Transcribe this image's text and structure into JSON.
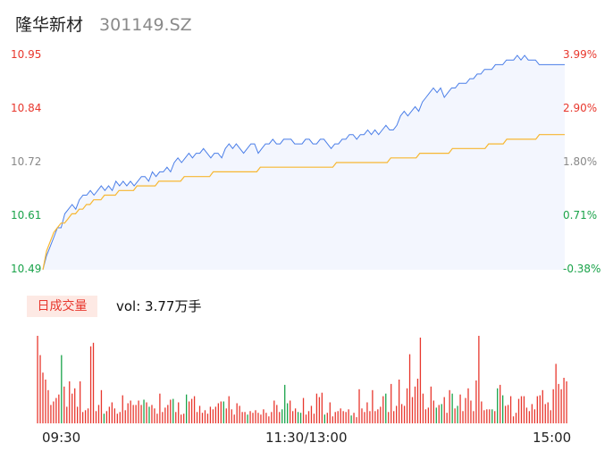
{
  "header": {
    "name": "隆华新材",
    "code": "301149.SZ"
  },
  "volume_label": "日成交量",
  "volume_text": "vol: 3.77万手",
  "colors": {
    "price_line": "#4a7ee8",
    "avg_line": "#f7b731",
    "fill": "#f3f6fe",
    "up": "#e8372d",
    "down": "#1aa34a",
    "neutral": "#888888"
  },
  "chart_data": [
    {
      "type": "line",
      "y_left_ticks": [
        "10.95",
        "10.84",
        "10.72",
        "10.61",
        "10.49"
      ],
      "y_right_ticks": [
        "3.99%",
        "2.90%",
        "1.80%",
        "0.71%",
        "-0.38%"
      ],
      "x_tick_labels": [
        "09:30",
        "11:30/13:00",
        "15:00"
      ],
      "ylim": [
        10.49,
        10.95
      ],
      "series": [
        {
          "values": [
            10.49,
            10.52,
            10.54,
            10.56,
            10.58,
            10.58,
            10.61,
            10.62,
            10.63,
            10.62,
            10.64,
            10.65,
            10.65,
            10.66,
            10.65,
            10.66,
            10.67,
            10.66,
            10.67,
            10.66,
            10.68,
            10.67,
            10.68,
            10.67,
            10.68,
            10.67,
            10.68,
            10.69,
            10.69,
            10.68,
            10.7,
            10.69,
            10.7,
            10.7,
            10.71,
            10.7,
            10.72,
            10.73,
            10.72,
            10.73,
            10.74,
            10.73,
            10.74,
            10.74,
            10.75,
            10.74,
            10.73,
            10.74,
            10.74,
            10.73,
            10.75,
            10.76,
            10.75,
            10.76,
            10.75,
            10.74,
            10.75,
            10.76,
            10.76,
            10.74,
            10.75,
            10.76,
            10.76,
            10.77,
            10.76,
            10.76,
            10.77,
            10.77,
            10.77,
            10.76,
            10.76,
            10.76,
            10.77,
            10.77,
            10.76,
            10.76,
            10.77,
            10.77,
            10.76,
            10.75,
            10.76,
            10.76,
            10.77,
            10.77,
            10.78,
            10.78,
            10.77,
            10.78,
            10.78,
            10.79,
            10.78,
            10.79,
            10.78,
            10.79,
            10.8,
            10.79,
            10.79,
            10.8,
            10.82,
            10.83,
            10.82,
            10.83,
            10.84,
            10.83,
            10.85,
            10.86,
            10.87,
            10.88,
            10.87,
            10.88,
            10.86,
            10.87,
            10.88,
            10.88,
            10.89,
            10.89,
            10.89,
            10.9,
            10.9,
            10.91,
            10.91,
            10.92,
            10.92,
            10.92,
            10.93,
            10.93,
            10.93,
            10.94,
            10.94,
            10.94,
            10.95,
            10.94,
            10.95,
            10.94,
            10.94,
            10.94,
            10.93,
            10.93,
            10.93,
            10.93,
            10.93,
            10.93,
            10.93,
            10.93
          ]
        },
        {
          "values": [
            10.49,
            10.53,
            10.55,
            10.57,
            10.58,
            10.59,
            10.59,
            10.6,
            10.61,
            10.61,
            10.62,
            10.62,
            10.63,
            10.63,
            10.64,
            10.64,
            10.64,
            10.65,
            10.65,
            10.65,
            10.65,
            10.66,
            10.66,
            10.66,
            10.66,
            10.66,
            10.67,
            10.67,
            10.67,
            10.67,
            10.67,
            10.67,
            10.68,
            10.68,
            10.68,
            10.68,
            10.68,
            10.68,
            10.68,
            10.69,
            10.69,
            10.69,
            10.69,
            10.69,
            10.69,
            10.69,
            10.69,
            10.7,
            10.7,
            10.7,
            10.7,
            10.7,
            10.7,
            10.7,
            10.7,
            10.7,
            10.7,
            10.7,
            10.7,
            10.7,
            10.71,
            10.71,
            10.71,
            10.71,
            10.71,
            10.71,
            10.71,
            10.71,
            10.71,
            10.71,
            10.71,
            10.71,
            10.71,
            10.71,
            10.71,
            10.71,
            10.71,
            10.71,
            10.71,
            10.71,
            10.71,
            10.72,
            10.72,
            10.72,
            10.72,
            10.72,
            10.72,
            10.72,
            10.72,
            10.72,
            10.72,
            10.72,
            10.72,
            10.72,
            10.72,
            10.72,
            10.73,
            10.73,
            10.73,
            10.73,
            10.73,
            10.73,
            10.73,
            10.73,
            10.74,
            10.74,
            10.74,
            10.74,
            10.74,
            10.74,
            10.74,
            10.74,
            10.74,
            10.75,
            10.75,
            10.75,
            10.75,
            10.75,
            10.75,
            10.75,
            10.75,
            10.75,
            10.75,
            10.76,
            10.76,
            10.76,
            10.76,
            10.76,
            10.77,
            10.77,
            10.77,
            10.77,
            10.77,
            10.77,
            10.77,
            10.77,
            10.77,
            10.78,
            10.78,
            10.78,
            10.78,
            10.78,
            10.78,
            10.78,
            10.78
          ]
        }
      ]
    },
    {
      "type": "bar",
      "ylim": [
        0,
        100
      ],
      "values": [
        100,
        78,
        58,
        50,
        38,
        21,
        25,
        29,
        33,
        78,
        42,
        19,
        48,
        34,
        40,
        19,
        48,
        13,
        15,
        17,
        88,
        92,
        14,
        21,
        38,
        11,
        14,
        19,
        24,
        17,
        11,
        13,
        32,
        15,
        23,
        26,
        21,
        21,
        26,
        21,
        27,
        24,
        19,
        21,
        17,
        11,
        34,
        13,
        18,
        21,
        27,
        28,
        13,
        24,
        10,
        11,
        33,
        25,
        28,
        31,
        13,
        20,
        12,
        15,
        11,
        19,
        16,
        19,
        23,
        25,
        25,
        17,
        31,
        16,
        10,
        23,
        20,
        13,
        13,
        10,
        14,
        12,
        15,
        12,
        10,
        16,
        12,
        8,
        13,
        26,
        21,
        13,
        16,
        44,
        23,
        26,
        14,
        17,
        13,
        12,
        29,
        10,
        14,
        20,
        11,
        34,
        30,
        35,
        10,
        12,
        24,
        8,
        13,
        14,
        17,
        14,
        13,
        16,
        9,
        12,
        7,
        39,
        17,
        13,
        24,
        14,
        38,
        14,
        16,
        19,
        31,
        34,
        13,
        45,
        14,
        20,
        50,
        22,
        20,
        40,
        79,
        30,
        42,
        51,
        98,
        34,
        16,
        18,
        42,
        26,
        18,
        21,
        22,
        30,
        12,
        38,
        34,
        17,
        20,
        33,
        14,
        29,
        40,
        26,
        14,
        49,
        100,
        25,
        15,
        16,
        16,
        16,
        14,
        40,
        44,
        32,
        20,
        21,
        31,
        8,
        12,
        28,
        31,
        31,
        18,
        14,
        22,
        16,
        31,
        32,
        38,
        22,
        24,
        15,
        39,
        68,
        45,
        39,
        52,
        48
      ],
      "down_indices": [
        9,
        25,
        40,
        42,
        51,
        56,
        70,
        79,
        92,
        93,
        94,
        98,
        99,
        108,
        118,
        131,
        150,
        152,
        156,
        158,
        171,
        173,
        175
      ],
      "neutral_indices": [
        200
      ]
    }
  ]
}
